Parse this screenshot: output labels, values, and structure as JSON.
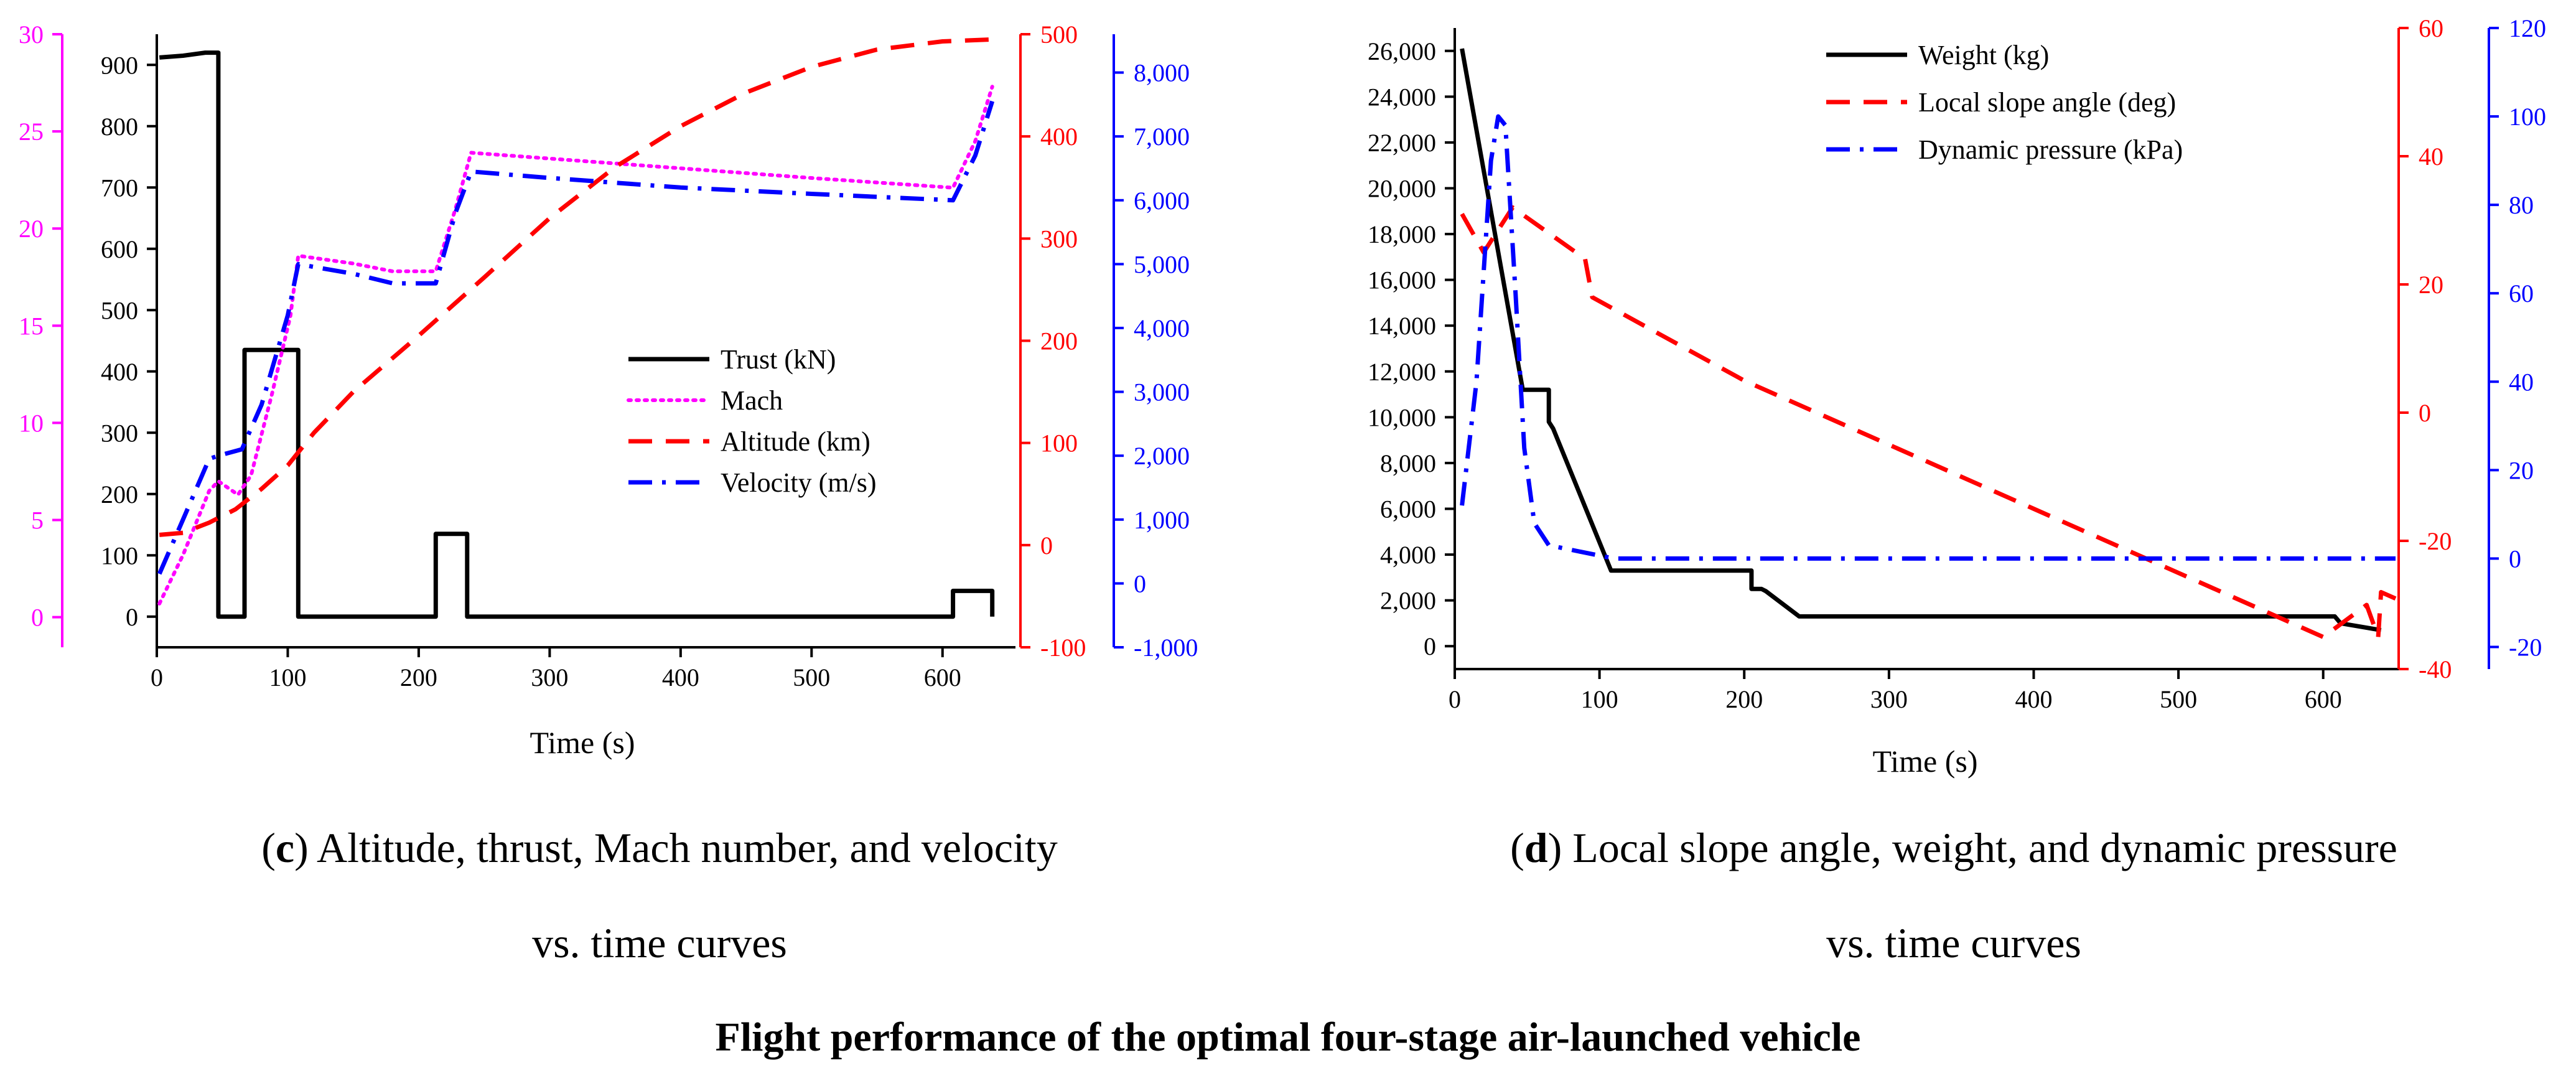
{
  "figure_title": "Flight performance of the optimal four-stage air-launched vehicle",
  "captions": {
    "c": {
      "letter": "c",
      "line1": ") Altitude, thrust, Mach number, and velocity",
      "line2": "vs. time curves"
    },
    "d": {
      "letter": "d",
      "line1": ") Local slope angle, weight, and dynamic pressure",
      "line2": "vs. time curves"
    }
  },
  "colors": {
    "black": "#000000",
    "magenta": "#ff00ff",
    "red": "#ff0000",
    "blue": "#0000ff"
  },
  "chart_data": [
    {
      "id": "c",
      "type": "line",
      "xlabel": "Time (s)",
      "xlim": [
        0,
        650
      ],
      "xticks": [
        0,
        100,
        200,
        300,
        400,
        500,
        600
      ],
      "legend_position": "center-right",
      "axes": [
        {
          "id": "mach",
          "side": "left-outer",
          "color": "#ff00ff",
          "lim": [
            -1.55,
            30
          ],
          "ticks": [
            0,
            5,
            10,
            15,
            20,
            25,
            30
          ]
        },
        {
          "id": "thrust",
          "side": "left",
          "color": "#000000",
          "lim": [
            -50,
            950
          ],
          "ticks": [
            0,
            100,
            200,
            300,
            400,
            500,
            600,
            700,
            800,
            900
          ]
        },
        {
          "id": "altitude",
          "side": "right",
          "color": "#ff0000",
          "lim": [
            -100,
            500
          ],
          "ticks": [
            -100,
            0,
            100,
            200,
            300,
            400,
            500
          ]
        },
        {
          "id": "velocity",
          "side": "right-outer",
          "color": "#0000ff",
          "lim": [
            -1000,
            8600
          ],
          "ticks": [
            -1000,
            0,
            1000,
            2000,
            3000,
            4000,
            5000,
            6000,
            7000,
            8000
          ]
        }
      ],
      "series": [
        {
          "name": "Trust (kN)",
          "axis": "thrust",
          "color": "#000000",
          "style": "solid",
          "x": [
            2,
            20,
            37,
            47,
            47,
            67,
            67,
            108,
            108,
            213,
            213,
            237,
            237,
            608,
            608,
            638,
            638
          ],
          "y": [
            912,
            915,
            920,
            920,
            0,
            0,
            435,
            435,
            0,
            0,
            135,
            135,
            0,
            0,
            42,
            42,
            0
          ]
        },
        {
          "name": "Mach",
          "axis": "mach",
          "color": "#ff00ff",
          "style": "dot",
          "x": [
            2,
            20,
            40,
            47,
            62,
            72,
            88,
            102,
            108,
            150,
            180,
            213,
            228,
            240,
            300,
            400,
            500,
            608,
            625,
            638
          ],
          "y": [
            0.7,
            3.2,
            6.5,
            7.0,
            6.3,
            7.3,
            11.5,
            15.5,
            18.6,
            18.2,
            17.8,
            17.8,
            21.0,
            23.9,
            23.6,
            23.1,
            22.6,
            22.1,
            24.5,
            27.3
          ]
        },
        {
          "name": "Altitude (km)",
          "axis": "altitude",
          "color": "#ff0000",
          "style": "dash",
          "x": [
            2,
            20,
            40,
            60,
            80,
            100,
            120,
            150,
            200,
            250,
            300,
            350,
            400,
            450,
            500,
            550,
            600,
            640
          ],
          "y": [
            10,
            12,
            22,
            35,
            55,
            78,
            110,
            150,
            205,
            262,
            320,
            370,
            410,
            443,
            468,
            485,
            493,
            495
          ]
        },
        {
          "name": "Velocity (m/s)",
          "axis": "velocity",
          "color": "#0000ff",
          "style": "dashdot",
          "x": [
            2,
            20,
            40,
            47,
            65,
            80,
            100,
            108,
            150,
            180,
            213,
            228,
            240,
            300,
            400,
            500,
            608,
            625,
            638
          ],
          "y": [
            150,
            1000,
            1950,
            2000,
            2100,
            2800,
            4200,
            5000,
            4850,
            4700,
            4700,
            5800,
            6450,
            6350,
            6200,
            6100,
            6000,
            6700,
            7550
          ]
        }
      ]
    },
    {
      "id": "d",
      "type": "line",
      "xlabel": "Time (s)",
      "xlim": [
        0,
        650
      ],
      "xticks": [
        0,
        100,
        200,
        300,
        400,
        500,
        600
      ],
      "legend_position": "top-center",
      "axes": [
        {
          "id": "weight",
          "side": "left",
          "color": "#000000",
          "lim": [
            -1000,
            27000
          ],
          "ticks": [
            0,
            2000,
            4000,
            6000,
            8000,
            10000,
            12000,
            14000,
            16000,
            18000,
            20000,
            22000,
            24000,
            26000
          ]
        },
        {
          "id": "slope",
          "side": "right",
          "color": "#ff0000",
          "lim": [
            -40,
            60
          ],
          "ticks": [
            -40,
            -20,
            0,
            20,
            40,
            60
          ]
        },
        {
          "id": "q",
          "side": "right-outer",
          "color": "#0000ff",
          "lim": [
            -25,
            120
          ],
          "ticks": [
            -20,
            0,
            20,
            40,
            60,
            80,
            100,
            120
          ]
        }
      ],
      "series": [
        {
          "name": "Weight (kg)",
          "axis": "weight",
          "color": "#000000",
          "style": "solid",
          "x": [
            5,
            47,
            47,
            65,
            65,
            68,
            108,
            205,
            205,
            212,
            215,
            238,
            608,
            612,
            640
          ],
          "y": [
            26100,
            11200,
            11200,
            11200,
            9800,
            9500,
            3300,
            3300,
            2500,
            2500,
            2400,
            1300,
            1300,
            1000,
            700
          ]
        },
        {
          "name": "Local slope angle (deg)",
          "axis": "slope",
          "color": "#ff0000",
          "style": "dash",
          "x": [
            5,
            20,
            40,
            90,
            95,
            200,
            400,
            600,
            630,
            638,
            640,
            650
          ],
          "y": [
            31,
            25,
            32,
            24,
            18,
            5,
            -15,
            -35,
            -30,
            -35,
            -28,
            -29
          ]
        },
        {
          "name": "Dynamic pressure (kPa)",
          "axis": "q",
          "color": "#0000ff",
          "style": "dashdot",
          "x": [
            5,
            15,
            25,
            30,
            35,
            42,
            48,
            55,
            65,
            80,
            110,
            200,
            300,
            400,
            500,
            600,
            650
          ],
          "y": [
            12,
            40,
            90,
            100,
            98,
            60,
            25,
            8,
            3,
            2,
            0,
            0,
            0,
            0,
            0,
            0,
            0
          ]
        }
      ]
    }
  ]
}
